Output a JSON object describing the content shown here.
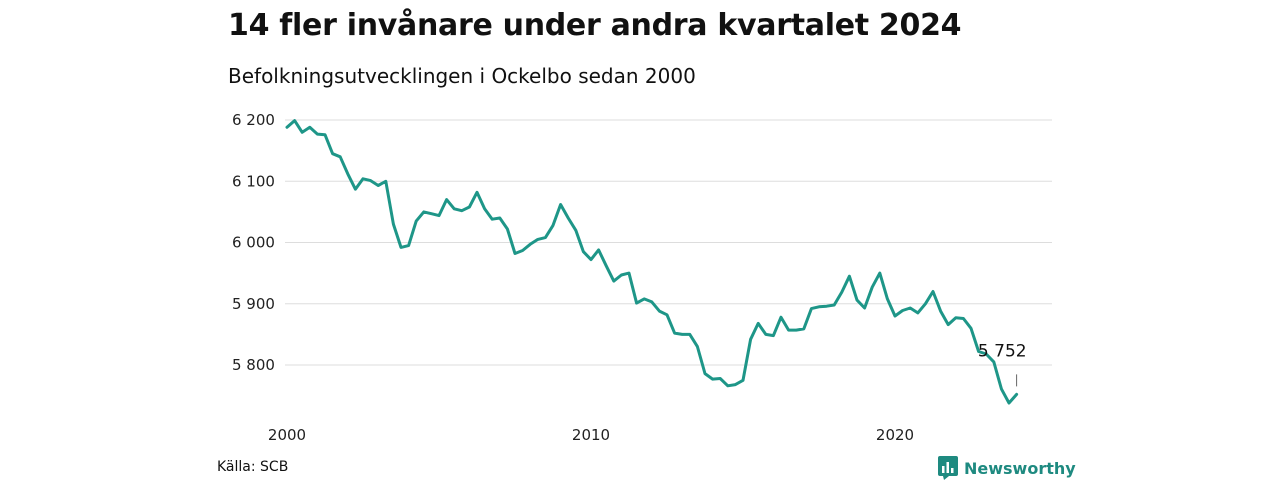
{
  "header": {
    "title": "14 fler invånare under andra kvartalet 2024",
    "subtitle": "Befolkningsutvecklingen i Ockelbo sedan 2000"
  },
  "footer": {
    "source": "Källa: SCB",
    "brand": "Newsworthy",
    "brand_icon": "newsworthy-logo-icon",
    "brand_color": "#1e8a80"
  },
  "chart_data": {
    "type": "line",
    "title": "14 fler invånare under andra kvartalet 2024",
    "subtitle": "Befolkningsutvecklingen i Ockelbo sedan 2000",
    "x_start": 2000.0,
    "x_step": 0.25,
    "x_ticks": [
      2000,
      2010,
      2020
    ],
    "x_tick_labels": [
      "2000",
      "2010",
      "2020"
    ],
    "xlim": [
      2000,
      2024.25
    ],
    "y_ticks": [
      5800,
      5900,
      6000,
      6100,
      6200
    ],
    "y_tick_labels": [
      "5 800",
      "5 900",
      "6 000",
      "6 100",
      "6 200"
    ],
    "ylim": [
      5730,
      6210
    ],
    "grid": true,
    "line_color": "#1e9688",
    "last_value_label": "5 752",
    "series": [
      {
        "values": [
          6188,
          6199,
          6180,
          6188,
          6177,
          6176,
          6145,
          6140,
          6112,
          6087,
          6104,
          6101,
          6093,
          6100,
          6030,
          5992,
          5995,
          6035,
          6050,
          6047,
          6044,
          6070,
          6055,
          6052,
          6058,
          6082,
          6055,
          6038,
          6040,
          6022,
          5982,
          5987,
          5997,
          6005,
          6008,
          6028,
          6062,
          6040,
          6020,
          5985,
          5972,
          5988,
          5962,
          5937,
          5947,
          5950,
          5901,
          5908,
          5903,
          5888,
          5882,
          5852,
          5850,
          5850,
          5830,
          5786,
          5777,
          5778,
          5766,
          5768,
          5775,
          5842,
          5868,
          5850,
          5848,
          5878,
          5857,
          5857,
          5859,
          5892,
          5895,
          5896,
          5898,
          5919,
          5945,
          5906,
          5893,
          5927,
          5950,
          5908,
          5880,
          5889,
          5893,
          5885,
          5900,
          5920,
          5888,
          5866,
          5877,
          5876,
          5860,
          5822,
          5818,
          5805,
          5761,
          5738,
          5752
        ]
      }
    ]
  }
}
